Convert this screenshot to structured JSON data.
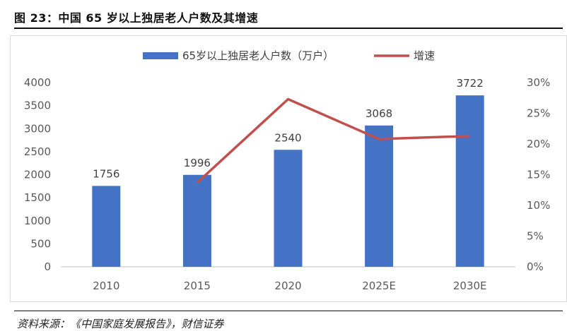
{
  "figure": {
    "title": "图 23：中国 65 岁以上独居老人户数及其增速",
    "source": "资料来源：《中国家庭发展报告》，财信证券"
  },
  "chart_data": {
    "type": "bar",
    "categories": [
      "2010",
      "2015",
      "2020",
      "2025E",
      "2030E"
    ],
    "series": [
      {
        "name": "65岁以上独居老人户数（万户）",
        "type": "bar",
        "axis": "left",
        "color": "#4472C4",
        "values": [
          1756,
          1996,
          2540,
          3068,
          3722
        ],
        "labels": [
          "1756",
          "1996",
          "2540",
          "3068",
          "3722"
        ]
      },
      {
        "name": "增速",
        "type": "line",
        "axis": "right",
        "color": "#C0504D",
        "values": [
          null,
          13.7,
          27.3,
          20.8,
          21.3
        ]
      }
    ],
    "y_left": {
      "min": 0,
      "max": 4000,
      "ticks": [
        0,
        500,
        1000,
        1500,
        2000,
        2500,
        3000,
        3500,
        4000
      ],
      "tick_labels": [
        "0",
        "500",
        "1000",
        "1500",
        "2000",
        "2500",
        "3000",
        "3500",
        "4000"
      ]
    },
    "y_right": {
      "min": 0,
      "max": 30,
      "ticks": [
        0,
        5,
        10,
        15,
        20,
        25,
        30
      ],
      "tick_labels": [
        "0%",
        "5%",
        "10%",
        "15%",
        "20%",
        "25%",
        "30%"
      ]
    },
    "legend": {
      "position": "top"
    },
    "grid": false
  }
}
